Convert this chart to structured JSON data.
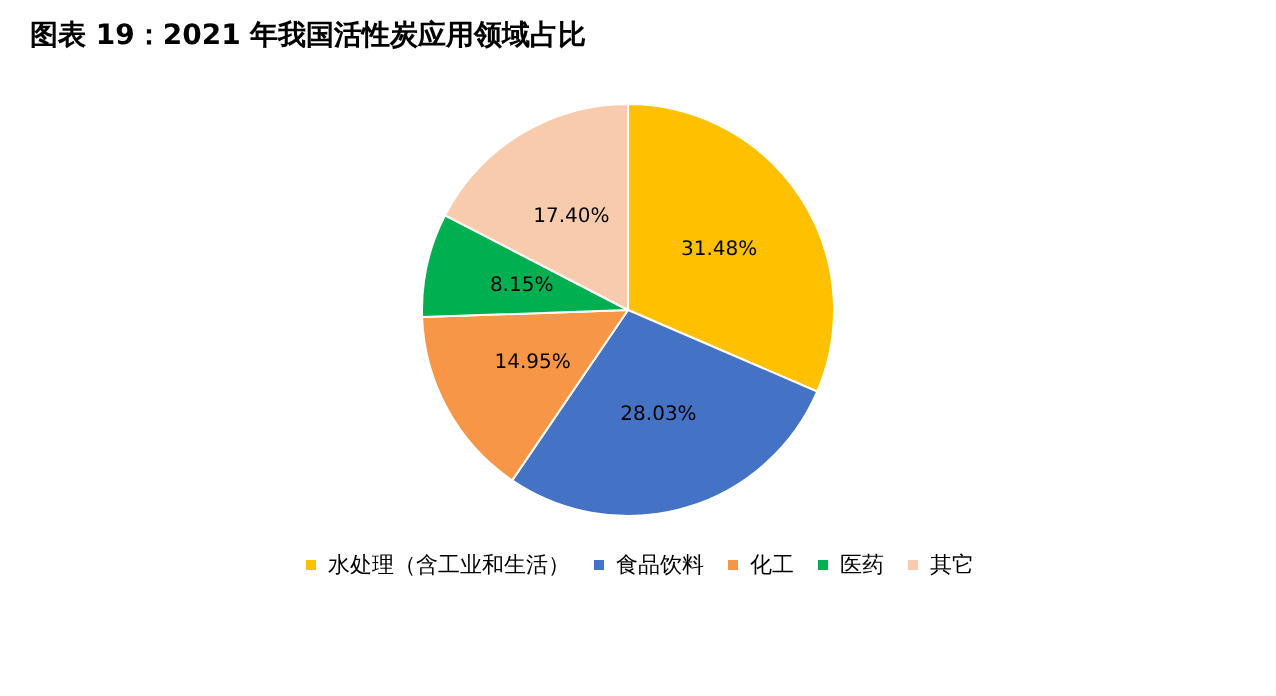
{
  "chart_data": {
    "type": "pie",
    "title": "图表 19：2021 年我国活性炭应用领域占比",
    "categories": [
      "水处理（含工业和生活）",
      "食品饮料",
      "化工",
      "医药",
      "其它"
    ],
    "values": [
      31.48,
      28.03,
      14.95,
      8.15,
      17.4
    ],
    "colors": [
      "#ffc000",
      "#4472c4",
      "#f79646",
      "#00b050",
      "#f8cbad"
    ],
    "value_labels": [
      "31.48%",
      "28.03%",
      "14.95%",
      "8.15%",
      "17.40%"
    ],
    "legend": "bottom"
  }
}
